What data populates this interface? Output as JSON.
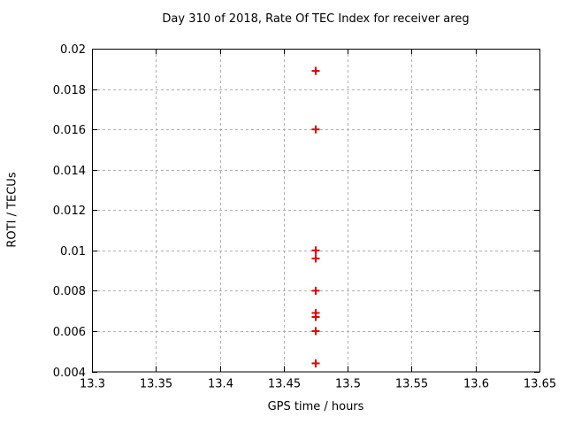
{
  "window": {
    "background": "#ffffff"
  },
  "chart_data": {
    "type": "scatter",
    "title": "Day 310 of 2018, Rate Of TEC Index for receiver areg",
    "xlabel": "GPS time / hours",
    "ylabel": "ROTI / TECUs",
    "xlim": [
      13.3,
      13.65
    ],
    "ylim": [
      0.004,
      0.02
    ],
    "grid": true,
    "grid_style": "dashed",
    "legend": false,
    "marker": "plus",
    "xticks": [
      {
        "value": 13.3,
        "label": "13.3"
      },
      {
        "value": 13.35,
        "label": "13.35"
      },
      {
        "value": 13.4,
        "label": "13.4"
      },
      {
        "value": 13.45,
        "label": "13.45"
      },
      {
        "value": 13.5,
        "label": "13.5"
      },
      {
        "value": 13.55,
        "label": "13.55"
      },
      {
        "value": 13.6,
        "label": "13.6"
      },
      {
        "value": 13.65,
        "label": "13.65"
      }
    ],
    "yticks": [
      {
        "value": 0.02,
        "label": "0.02"
      },
      {
        "value": 0.018,
        "label": "0.018"
      },
      {
        "value": 0.016,
        "label": "0.016"
      },
      {
        "value": 0.014,
        "label": "0.014"
      },
      {
        "value": 0.012,
        "label": "0.012"
      },
      {
        "value": 0.01,
        "label": "0.01"
      },
      {
        "value": 0.008,
        "label": "0.008"
      },
      {
        "value": 0.006,
        "label": "0.006"
      },
      {
        "value": 0.004,
        "label": "0.004"
      }
    ],
    "series": [
      {
        "name": "ROTI",
        "color": "#e00000",
        "points": [
          {
            "x": 13.475,
            "y": 0.0189
          },
          {
            "x": 13.475,
            "y": 0.016
          },
          {
            "x": 13.475,
            "y": 0.01
          },
          {
            "x": 13.475,
            "y": 0.0096
          },
          {
            "x": 13.475,
            "y": 0.008
          },
          {
            "x": 13.475,
            "y": 0.0069
          },
          {
            "x": 13.475,
            "y": 0.0067
          },
          {
            "x": 13.475,
            "y": 0.006
          },
          {
            "x": 13.475,
            "y": 0.0044
          }
        ]
      }
    ],
    "colors": {
      "grid": "#b0b0b0",
      "frame": "#000000",
      "text": "#000000",
      "background": "#ffffff"
    }
  }
}
